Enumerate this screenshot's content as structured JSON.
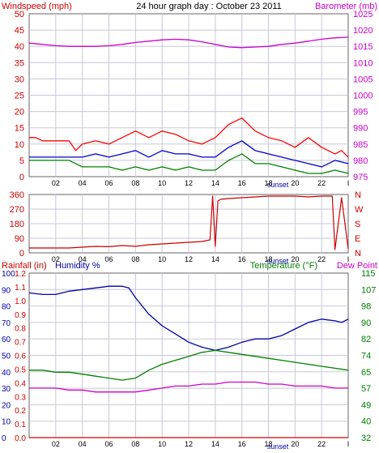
{
  "colors": {
    "windspeed": "#cc0000",
    "windgust": "#ff0000",
    "barometer": "#cc00cc",
    "wind_avg": "#0000cc",
    "wind_low": "#008000",
    "direction": "#cc0000",
    "humidity": "#0000aa",
    "temperature": "#008000",
    "dewpoint": "#cc00cc",
    "rainfall": "#cc0000",
    "grid": "#c8c8d8",
    "axis": "#444"
  },
  "chart_data": [
    {
      "type": "line",
      "title": "24 hour graph day : October 23 2011",
      "left_label": "Windspeed (mph)",
      "right_label": "Barometer (mb)",
      "x_ticks": [
        "02",
        "04",
        "06",
        "08",
        "10",
        "12",
        "14",
        "16",
        "18",
        "20",
        "22",
        "I"
      ],
      "x_annotation": "sunset",
      "left_ticks": [
        "0",
        "5",
        "10",
        "15",
        "20",
        "25",
        "30",
        "35",
        "40",
        "45",
        "50"
      ],
      "left_range": [
        0,
        50
      ],
      "right_ticks": [
        "975",
        "980",
        "985",
        "990",
        "995",
        "1000",
        "1005",
        "1010",
        "1015",
        "1020",
        "1025"
      ],
      "right_range": [
        975,
        1025
      ],
      "series": [
        {
          "key": "barometer",
          "axis": "right",
          "x": [
            0,
            1,
            2,
            3,
            4,
            5,
            6,
            7,
            8,
            9,
            10,
            11,
            12,
            13,
            14,
            15,
            16,
            17,
            18,
            19,
            20,
            21,
            22,
            23,
            24
          ],
          "values": [
            1016,
            1015.6,
            1015.2,
            1015,
            1015,
            1015,
            1015.2,
            1015.6,
            1016.2,
            1016.6,
            1017,
            1017.2,
            1017,
            1016.4,
            1015.6,
            1014.8,
            1014.6,
            1014.8,
            1015,
            1015.6,
            1016,
            1016.6,
            1017.2,
            1017.6,
            1017.8
          ]
        },
        {
          "key": "windgust",
          "axis": "left",
          "x": [
            0,
            0.5,
            1,
            2,
            3,
            3.5,
            4,
            5,
            6,
            7,
            8,
            9,
            10,
            11,
            12,
            13,
            14,
            15,
            16,
            17,
            18,
            19,
            20,
            21,
            22,
            23,
            23.5,
            24
          ],
          "values": [
            12,
            12,
            11,
            11,
            11,
            8,
            10,
            11,
            10,
            12,
            14,
            12,
            14,
            13,
            11,
            10,
            12,
            16,
            18,
            14,
            12,
            11,
            9,
            12,
            9,
            7,
            8,
            6
          ]
        },
        {
          "key": "wind_avg",
          "axis": "left",
          "x": [
            0,
            1,
            2,
            3,
            4,
            5,
            6,
            7,
            8,
            9,
            10,
            11,
            12,
            13,
            14,
            15,
            16,
            17,
            18,
            19,
            20,
            21,
            22,
            23,
            24
          ],
          "values": [
            6,
            6,
            6,
            6,
            6,
            7,
            6,
            7,
            8,
            6,
            8,
            7,
            7,
            6,
            6,
            9,
            11,
            8,
            7,
            6,
            5,
            4,
            3,
            5,
            4
          ]
        },
        {
          "key": "wind_low",
          "axis": "left",
          "x": [
            0,
            1,
            2,
            3,
            4,
            5,
            6,
            7,
            8,
            9,
            10,
            11,
            12,
            13,
            14,
            15,
            16,
            17,
            18,
            19,
            20,
            21,
            22,
            23,
            24
          ],
          "values": [
            5,
            5,
            5,
            5,
            3,
            3,
            3,
            2,
            3,
            2,
            3,
            2,
            3,
            2,
            2,
            5,
            7,
            4,
            4,
            3,
            2,
            1,
            1,
            2,
            1
          ]
        }
      ]
    },
    {
      "type": "line",
      "left_ticks": [
        "360",
        "270",
        "180",
        "90",
        "0"
      ],
      "left_range": [
        0,
        360
      ],
      "right_ticks": [
        "N",
        "W",
        "S",
        "E",
        "N"
      ],
      "x_ticks": [
        "02",
        "04",
        "06",
        "08",
        "10",
        "12",
        "14",
        "16",
        "18",
        "20",
        "22",
        "I"
      ],
      "x_annotation": "sunset",
      "series": [
        {
          "key": "direction",
          "x": [
            0,
            3,
            4,
            5,
            6,
            7,
            8,
            9,
            10,
            11,
            12,
            13,
            13.6,
            13.8,
            14,
            14.2,
            14.4,
            15,
            16,
            17,
            18,
            19,
            20,
            21,
            22,
            22.8,
            23,
            23.5,
            24
          ],
          "values": [
            30,
            30,
            35,
            40,
            38,
            45,
            40,
            50,
            55,
            60,
            65,
            70,
            80,
            350,
            40,
            320,
            330,
            335,
            340,
            345,
            350,
            350,
            350,
            345,
            350,
            350,
            20,
            340,
            25
          ]
        }
      ]
    },
    {
      "type": "line",
      "left_label": "Rainfall (in)",
      "left2_label": "Humidity %",
      "right_label": "Temperature (°F)",
      "right2_label": "Dew Point",
      "x_ticks": [
        "02",
        "04",
        "06",
        "08",
        "10",
        "12",
        "14",
        "16",
        "18",
        "20",
        "22",
        "I"
      ],
      "x_annotation": "sunset",
      "rain_ticks": [
        "0.0",
        "0.1",
        "0.2",
        "0.3",
        "0.4",
        "0.5",
        "0.6",
        "0.7",
        "0.8",
        "0.9",
        "1.0",
        "1.1",
        "1.2"
      ],
      "rain_range": [
        0,
        1.2
      ],
      "humidity_ticks": [
        "0",
        "10",
        "20",
        "30",
        "40",
        "50",
        "60",
        "70",
        "80",
        "90",
        "100"
      ],
      "humidity_range": [
        0,
        100
      ],
      "temp_ticks": [
        "32",
        "40",
        "49",
        "57",
        "65",
        "74",
        "82",
        "90",
        "98",
        "107",
        "115"
      ],
      "temp_range": [
        32,
        115
      ],
      "series": [
        {
          "key": "humidity",
          "axis": "humidity",
          "x": [
            0,
            1,
            2,
            3,
            4,
            5,
            6,
            7,
            7.5,
            8,
            9,
            10,
            11,
            12,
            13,
            14,
            15,
            16,
            17,
            18,
            19,
            20,
            21,
            22,
            23,
            23.5,
            24
          ],
          "values": [
            88,
            87,
            87,
            89,
            90,
            91,
            92,
            92,
            91,
            85,
            75,
            68,
            63,
            58,
            55,
            53,
            55,
            58,
            60,
            60,
            62,
            66,
            70,
            72,
            71,
            70,
            72
          ]
        },
        {
          "key": "temperature",
          "axis": "temp",
          "x": [
            0,
            1,
            2,
            3,
            4,
            5,
            6,
            7,
            8,
            9,
            10,
            11,
            12,
            13,
            14,
            15,
            16,
            17,
            18,
            19,
            20,
            21,
            22,
            23,
            24
          ],
          "values": [
            66,
            66,
            65,
            65,
            64,
            63,
            62,
            61,
            62,
            66,
            69,
            71,
            73,
            75,
            76,
            75,
            74,
            73,
            72,
            71,
            70,
            69,
            68,
            67,
            66
          ]
        },
        {
          "key": "dewpoint",
          "axis": "temp",
          "x": [
            0,
            1,
            2,
            3,
            4,
            5,
            6,
            7,
            8,
            9,
            10,
            11,
            12,
            13,
            14,
            15,
            16,
            17,
            18,
            19,
            20,
            21,
            22,
            23,
            24
          ],
          "values": [
            57,
            57,
            57,
            56,
            56,
            55,
            55,
            55,
            55,
            56,
            57,
            58,
            58,
            59,
            59,
            60,
            60,
            60,
            59,
            59,
            58,
            58,
            58,
            57,
            57
          ]
        },
        {
          "key": "rainfall",
          "axis": "rain",
          "x": [
            0,
            24
          ],
          "values": [
            0,
            0
          ]
        }
      ]
    }
  ]
}
